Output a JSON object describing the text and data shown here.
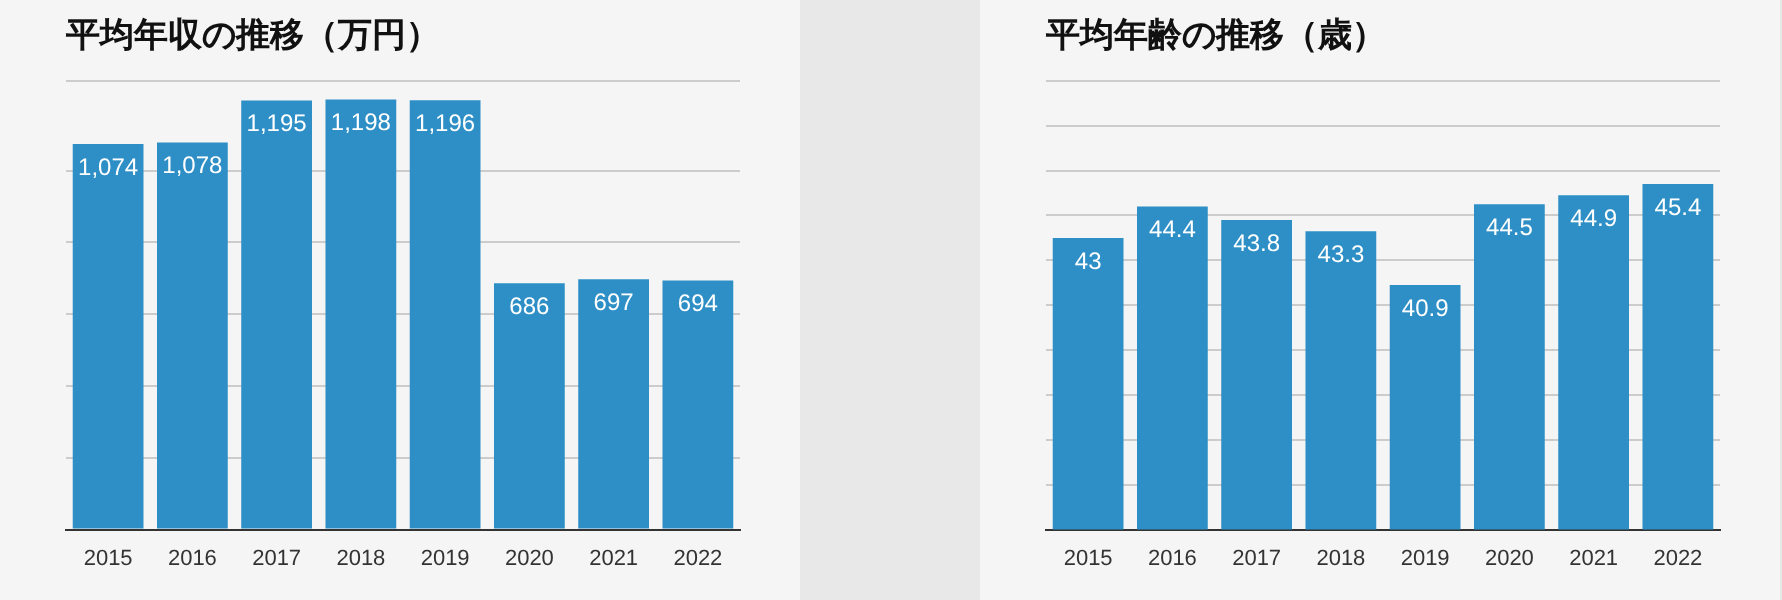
{
  "chart_data": [
    {
      "type": "bar",
      "title": "平均年収の推移（万円）",
      "categories": [
        "2015",
        "2016",
        "2017",
        "2018",
        "2019",
        "2020",
        "2021",
        "2022"
      ],
      "values": [
        1074,
        1078,
        1195,
        1198,
        1196,
        686,
        697,
        694
      ],
      "value_labels": [
        "1,074",
        "1,078",
        "1,195",
        "1,198",
        "1,196",
        "686",
        "697",
        "694"
      ],
      "color": "#2e8fc6",
      "ylim": [
        0,
        1250
      ],
      "grid": "y",
      "tick_labels": "x"
    },
    {
      "type": "bar",
      "title": "平均年齢の推移（歳）",
      "categories": [
        "2015",
        "2016",
        "2017",
        "2018",
        "2019",
        "2020",
        "2021",
        "2022"
      ],
      "values": [
        43,
        44.4,
        43.8,
        43.3,
        40.9,
        44.5,
        44.9,
        45.4
      ],
      "color": "#2e8fc6",
      "data_labels": true,
      "ylim": [
        30,
        50
      ],
      "grid": "y",
      "tick_labels": "x"
    }
  ]
}
